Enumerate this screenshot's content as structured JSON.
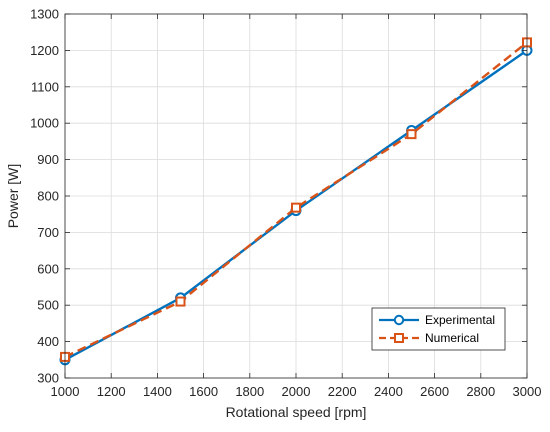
{
  "chart_data": {
    "type": "line",
    "title": "",
    "xlabel": "Rotational speed [rpm]",
    "ylabel": "Power [W]",
    "xlim": [
      1000,
      3000
    ],
    "ylim": [
      300,
      1300
    ],
    "xticks": [
      1000,
      1200,
      1400,
      1600,
      1800,
      2000,
      2200,
      2400,
      2600,
      2800,
      3000
    ],
    "yticks": [
      300,
      400,
      500,
      600,
      700,
      800,
      900,
      1000,
      1100,
      1200,
      1300
    ],
    "grid": true,
    "legend_position": "bottom-right",
    "x": [
      1000,
      1500,
      2000,
      2500,
      3000
    ],
    "series": [
      {
        "name": "Experimental",
        "values": [
          350,
          520,
          760,
          980,
          1200
        ],
        "color": "#0072BD",
        "line_style": "solid",
        "marker": "circle"
      },
      {
        "name": "Numerical",
        "values": [
          358,
          510,
          768,
          970,
          1222
        ],
        "color": "#D95319",
        "line_style": "dashed",
        "marker": "square"
      }
    ]
  }
}
